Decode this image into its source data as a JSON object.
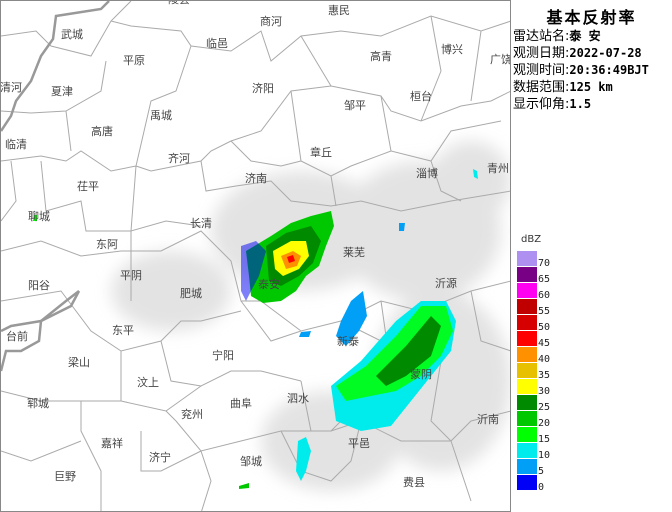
{
  "panel": {
    "title": "基本反射率",
    "rows": [
      {
        "label": "雷达站名:",
        "value": "泰 安"
      },
      {
        "label": "观测日期:",
        "value": "2022-07-28"
      },
      {
        "label": "观测时间:",
        "value": "20:36:49BJT"
      },
      {
        "label": "数据范围:",
        "value": "125 km"
      },
      {
        "label": "显示仰角:",
        "value": "1.5"
      }
    ]
  },
  "legend": {
    "unit": "dBZ",
    "items": [
      {
        "value": "70",
        "color": "#ad90f0"
      },
      {
        "value": "65",
        "color": "#780084"
      },
      {
        "value": "60",
        "color": "#ff00f0"
      },
      {
        "value": "55",
        "color": "#c00000"
      },
      {
        "value": "50",
        "color": "#d60000"
      },
      {
        "value": "45",
        "color": "#ff0000"
      },
      {
        "value": "40",
        "color": "#ff9000"
      },
      {
        "value": "35",
        "color": "#e7c000"
      },
      {
        "value": "30",
        "color": "#ffff00"
      },
      {
        "value": "25",
        "color": "#008a00"
      },
      {
        "value": "20",
        "color": "#00c800"
      },
      {
        "value": "15",
        "color": "#00ff00"
      },
      {
        "value": "10",
        "color": "#00ecec"
      },
      {
        "value": "5",
        "color": "#01a0f6"
      },
      {
        "value": "0",
        "color": "#0000f6"
      }
    ]
  },
  "map": {
    "cities": [
      "陵县",
      "武城",
      "平原",
      "临邑",
      "清河",
      "夏津",
      "禹城",
      "高唐",
      "临清",
      "齐河",
      "茌平",
      "济南",
      "长清",
      "聊城",
      "东阿",
      "商河",
      "惠民",
      "高青",
      "博兴",
      "广饶",
      "济阳",
      "邹平",
      "桓台",
      "章丘",
      "淄博",
      "青州",
      "莱芜",
      "泰安",
      "沂源",
      "新泰",
      "蒙阴",
      "沂南",
      "泗水",
      "平邑",
      "费县",
      "阳谷",
      "平阴",
      "肥城",
      "台前",
      "东平",
      "梁山",
      "宁阳",
      "汶上",
      "郓城",
      "兖州",
      "曲阜",
      "嘉祥",
      "济宁",
      "邹城",
      "巨野"
    ]
  }
}
